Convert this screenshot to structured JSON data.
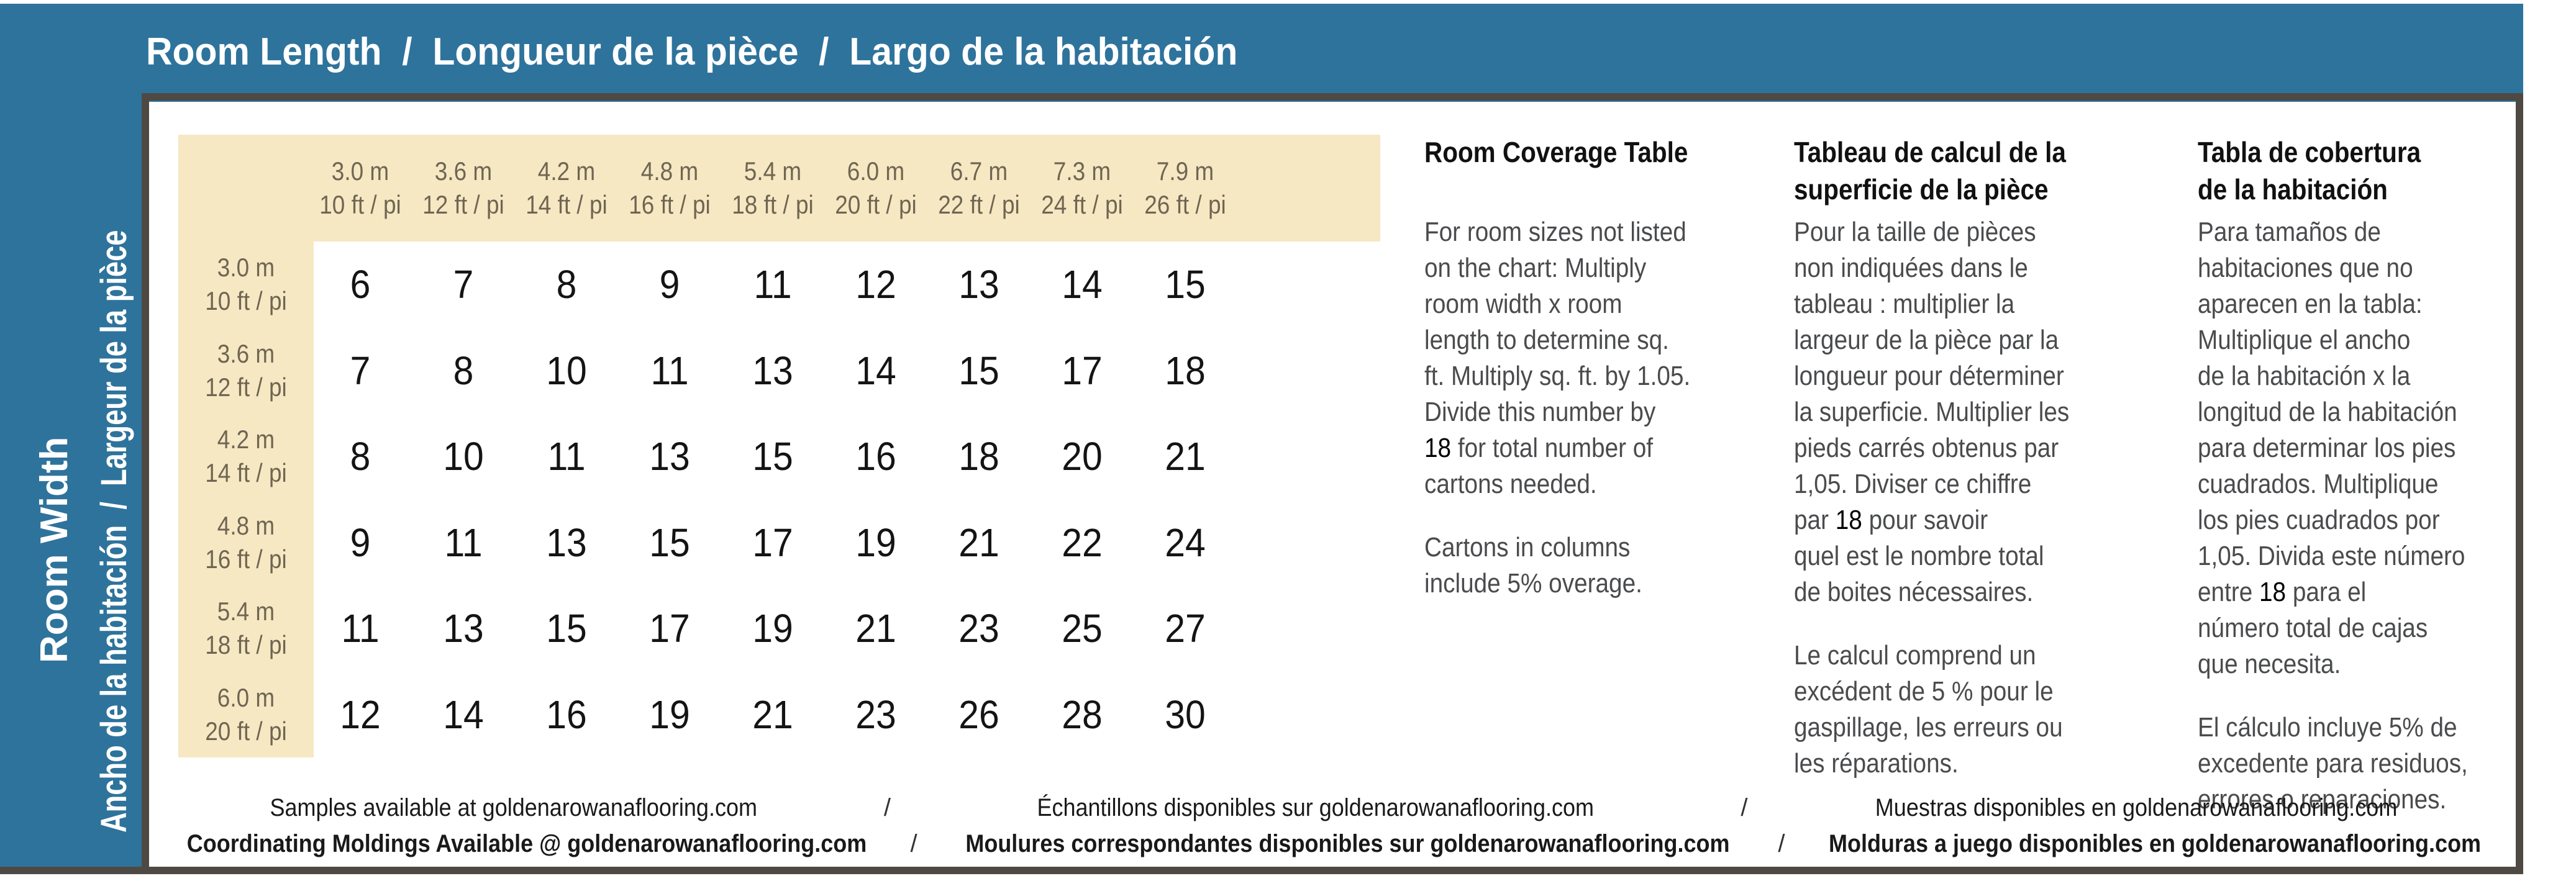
{
  "colors": {
    "blue": "#2e739c",
    "cream": "#f6e8c2",
    "frame": "#4e4a43",
    "header_text": "#6f6553",
    "value_text": "#141414",
    "panel_body_text": "#4a4b4d",
    "footer_text": "#191919"
  },
  "top_bar": {
    "title": "Room Length  /  Longueur de la pièce  /  Largo de la habitación"
  },
  "sidebar": {
    "outer_label": "Room Width",
    "inner_label": "Ancho de la habitación  /  Largeur de la pièce"
  },
  "coverage_table": {
    "column_headers": [
      {
        "metric": "3.0 m",
        "imperial": "10 ft / pi"
      },
      {
        "metric": "3.6 m",
        "imperial": "12 ft / pi"
      },
      {
        "metric": "4.2 m",
        "imperial": "14 ft / pi"
      },
      {
        "metric": "4.8 m",
        "imperial": "16 ft / pi"
      },
      {
        "metric": "5.4 m",
        "imperial": "18 ft / pi"
      },
      {
        "metric": "6.0 m",
        "imperial": "20 ft / pi"
      },
      {
        "metric": "6.7 m",
        "imperial": "22 ft / pi"
      },
      {
        "metric": "7.3 m",
        "imperial": "24 ft / pi"
      },
      {
        "metric": "7.9 m",
        "imperial": "26 ft / pi"
      }
    ],
    "row_headers": [
      {
        "metric": "3.0 m",
        "imperial": "10 ft / pi"
      },
      {
        "metric": "3.6 m",
        "imperial": "12 ft / pi"
      },
      {
        "metric": "4.2 m",
        "imperial": "14 ft / pi"
      },
      {
        "metric": "4.8 m",
        "imperial": "16 ft / pi"
      },
      {
        "metric": "5.4 m",
        "imperial": "18 ft / pi"
      },
      {
        "metric": "6.0 m",
        "imperial": "20 ft / pi"
      }
    ],
    "values": [
      [
        6,
        7,
        8,
        9,
        11,
        12,
        13,
        14,
        15
      ],
      [
        7,
        8,
        10,
        11,
        13,
        14,
        15,
        17,
        18
      ],
      [
        8,
        10,
        11,
        13,
        15,
        16,
        18,
        20,
        21
      ],
      [
        9,
        11,
        13,
        15,
        17,
        19,
        21,
        22,
        24
      ],
      [
        11,
        13,
        15,
        17,
        19,
        21,
        23,
        25,
        27
      ],
      [
        12,
        14,
        16,
        19,
        21,
        23,
        26,
        28,
        30
      ]
    ]
  },
  "highlight_token": "18",
  "panels": [
    {
      "language": "English",
      "title": "Room Coverage Table",
      "paragraph1": "For room sizes not listed\non the chart: Multiply\nroom width x room\nlength to determine sq.\nft. Multiply sq. ft. by 1.05.\nDivide this number by\n18 for total number of\ncartons needed.",
      "paragraph2": "Cartons in columns\ninclude 5% overage."
    },
    {
      "language": "Français",
      "title": "Tableau de calcul de la\nsuperficie de la pièce",
      "paragraph1": "Pour la taille de pièces\nnon indiquées dans le\ntableau :  multiplier la\nlargeur de la pièce par la\nlongueur pour déterminer\nla superficie. Multiplier les\npieds carrés obtenus par\n1,05. Diviser ce chiffre\npar 18 pour savoir\nquel est le nombre total\nde boites nécessaires.",
      "paragraph2": "Le calcul comprend un\nexcédent de 5 % pour le\ngaspillage, les erreurs ou\nles réparations."
    },
    {
      "language": "Español",
      "title": "Tabla de cobertura\nde la habitación",
      "paragraph1": "Para tamaños de\nhabitaciones que no\naparecen en la tabla:\nMultiplique el ancho\nde la habitación x la\nlongitud de la habitación\npara determinar los pies\ncuadrados. Multiplique\nlos pies cuadrados por\n1,05. Divida este número\nentre 18 para el\nnúmero total de cajas\nque necesita.",
      "paragraph2": "El cálculo incluye 5% de\nexcedente para residuos,\nerrores o reparaciones."
    }
  ],
  "footer": {
    "separator": "/",
    "lines": [
      {
        "bold": false,
        "segments": [
          "Samples available at goldenarowanaflooring.com",
          "Échantillons disponibles sur goldenarowanaflooring.com",
          "Muestras disponibles en goldenarowanaflooring.com"
        ]
      },
      {
        "bold": true,
        "segments": [
          "Coordinating Moldings Available @ goldenarowanaflooring.com",
          "Moulures correspondantes disponibles sur goldenarowanaflooring.com",
          "Molduras a juego disponibles en goldenarowanaflooring.com"
        ]
      }
    ]
  }
}
